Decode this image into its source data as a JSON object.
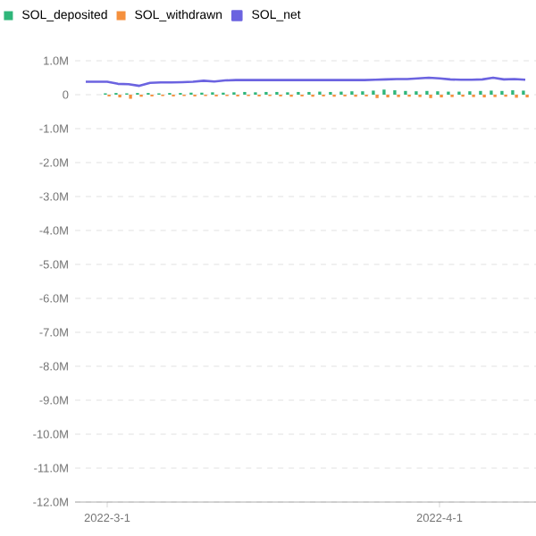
{
  "chart_data": {
    "type": "bar",
    "x": [
      "2022-02-27",
      "2022-02-28",
      "2022-03-01",
      "2022-03-02",
      "2022-03-03",
      "2022-03-04",
      "2022-03-05",
      "2022-03-06",
      "2022-03-07",
      "2022-03-08",
      "2022-03-09",
      "2022-03-10",
      "2022-03-11",
      "2022-03-12",
      "2022-03-13",
      "2022-03-14",
      "2022-03-15",
      "2022-03-16",
      "2022-03-17",
      "2022-03-18",
      "2022-03-19",
      "2022-03-20",
      "2022-03-21",
      "2022-03-22",
      "2022-03-23",
      "2022-03-24",
      "2022-03-25",
      "2022-03-26",
      "2022-03-27",
      "2022-03-28",
      "2022-03-29",
      "2022-03-30",
      "2022-03-31",
      "2022-04-01",
      "2022-04-02",
      "2022-04-03",
      "2022-04-04",
      "2022-04-05",
      "2022-04-06",
      "2022-04-07",
      "2022-04-08",
      "2022-04-09"
    ],
    "series": [
      {
        "name": "SOL_deposited",
        "color": "#2fb67a",
        "values": [
          null,
          null,
          40000,
          50000,
          40000,
          50000,
          50000,
          40000,
          50000,
          50000,
          60000,
          60000,
          70000,
          60000,
          70000,
          80000,
          70000,
          80000,
          80000,
          70000,
          80000,
          80000,
          90000,
          80000,
          90000,
          100000,
          100000,
          120000,
          150000,
          130000,
          110000,
          100000,
          110000,
          100000,
          90000,
          90000,
          100000,
          110000,
          120000,
          110000,
          130000,
          120000
        ]
      },
      {
        "name": "SOL_withdrawn",
        "color": "#f5903d",
        "values": [
          null,
          null,
          -50000,
          -80000,
          -120000,
          -60000,
          -50000,
          -40000,
          -50000,
          -40000,
          -50000,
          -40000,
          -50000,
          -40000,
          -50000,
          -40000,
          -50000,
          -40000,
          -50000,
          -60000,
          -50000,
          -60000,
          -50000,
          -60000,
          -50000,
          -60000,
          -50000,
          -100000,
          -80000,
          -70000,
          -60000,
          -70000,
          -100000,
          -80000,
          -70000,
          -60000,
          -70000,
          -80000,
          -70000,
          -60000,
          -90000,
          -80000
        ]
      },
      {
        "name": "SOL_net",
        "type": "line",
        "color": "#6b63e0",
        "values": [
          380000,
          380000,
          380000,
          320000,
          310000,
          260000,
          350000,
          360000,
          360000,
          370000,
          380000,
          410000,
          390000,
          420000,
          430000,
          430000,
          430000,
          430000,
          430000,
          430000,
          430000,
          430000,
          430000,
          430000,
          430000,
          430000,
          430000,
          440000,
          450000,
          460000,
          460000,
          480000,
          500000,
          480000,
          450000,
          440000,
          440000,
          450000,
          500000,
          450000,
          460000,
          440000
        ]
      }
    ],
    "xlim": [
      "2022-02-26",
      "2022-04-10"
    ],
    "xticks": [
      {
        "value": "2022-03-01",
        "label": "2022-3-1"
      },
      {
        "value": "2022-04-01",
        "label": "2022-4-1"
      }
    ],
    "ylim": [
      -12000000,
      1000000
    ],
    "yticks": [
      {
        "value": 1000000,
        "label": "1.0M"
      },
      0,
      {
        "value": -1000000,
        "label": "-1.0M"
      },
      {
        "value": -2000000,
        "label": "-2.0M"
      },
      {
        "value": -3000000,
        "label": "-3.0M"
      },
      {
        "value": -4000000,
        "label": "-4.0M"
      },
      {
        "value": -5000000,
        "label": "-5.0M"
      },
      {
        "value": -6000000,
        "label": "-6.0M"
      },
      {
        "value": -7000000,
        "label": "-7.0M"
      },
      {
        "value": -8000000,
        "label": "-8.0M"
      },
      {
        "value": -9000000,
        "label": "-9.0M"
      },
      {
        "value": -10000000,
        "label": "-10.0M"
      },
      {
        "value": -11000000,
        "label": "-11.0M"
      },
      {
        "value": -12000000,
        "label": "-12.0M"
      }
    ],
    "grid": "y",
    "legend": "top left"
  }
}
